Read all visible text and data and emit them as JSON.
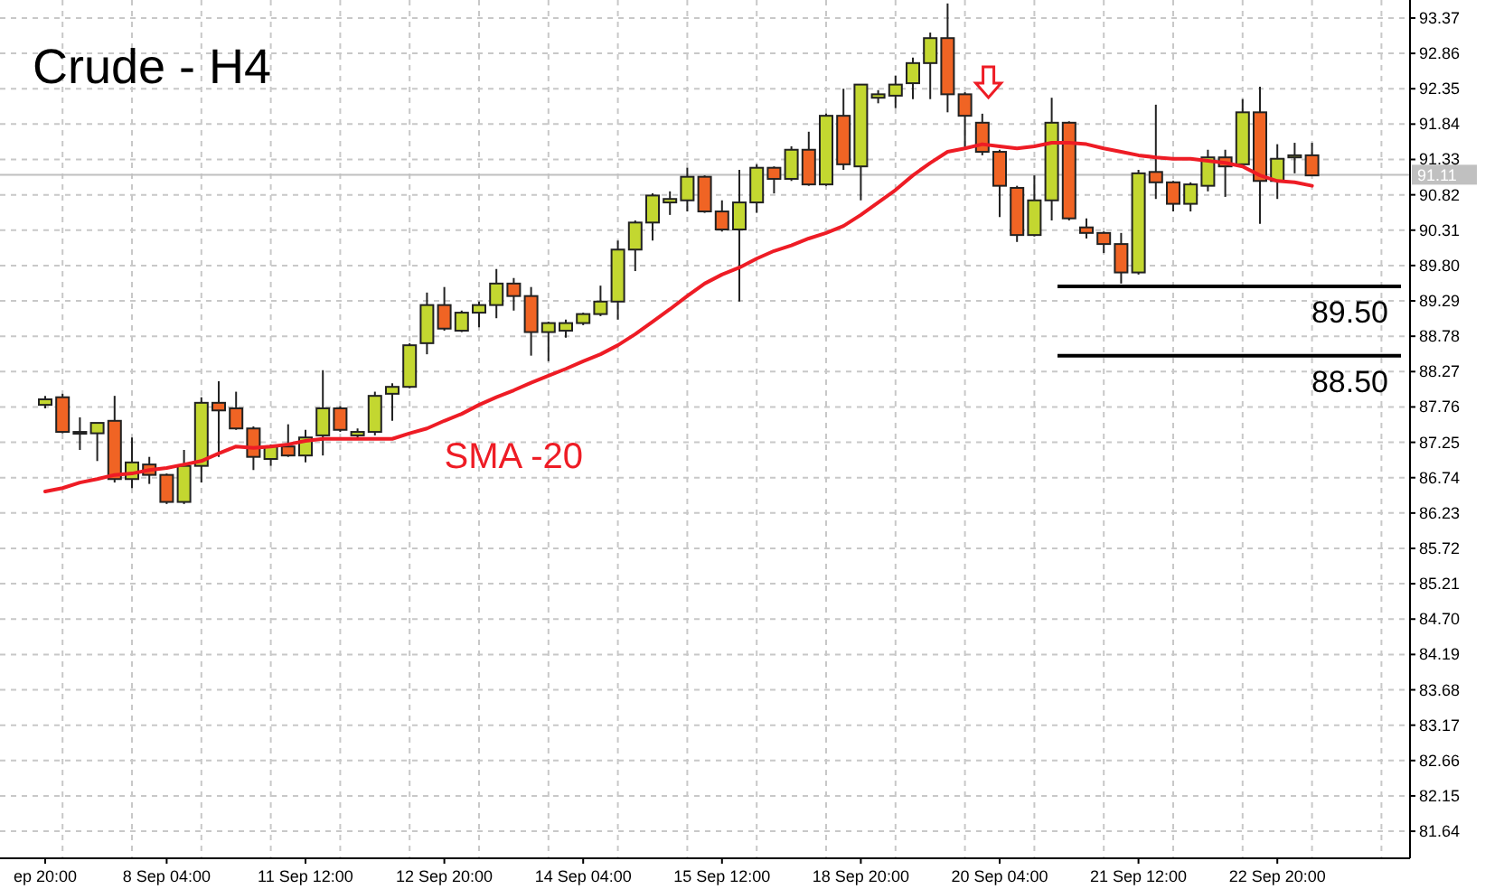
{
  "chart_data": {
    "type": "candlestick",
    "title": "Crude - H4",
    "categories": [
      "ep 20:00",
      null,
      null,
      null,
      null,
      null,
      null,
      "8 Sep 04:00",
      null,
      null,
      null,
      null,
      null,
      null,
      null,
      "11 Sep 12:00",
      null,
      null,
      null,
      null,
      null,
      null,
      null,
      "12 Sep 20:00",
      null,
      null,
      null,
      null,
      null,
      null,
      null,
      "14 Sep 04:00",
      null,
      null,
      null,
      null,
      null,
      null,
      null,
      "15 Sep 12:00",
      null,
      null,
      null,
      null,
      null,
      null,
      null,
      "18 Sep 20:00",
      null,
      null,
      null,
      null,
      null,
      null,
      null,
      "20 Sep 04:00",
      null,
      null,
      null,
      null,
      null,
      null,
      null,
      "21 Sep 12:00",
      null,
      null,
      null,
      null,
      null,
      null,
      null,
      "22 Sep 20:00",
      null,
      null
    ],
    "ohlc": [
      [
        87.79,
        87.92,
        87.74,
        87.87
      ],
      [
        87.9,
        87.95,
        87.38,
        87.4
      ],
      [
        87.4,
        87.61,
        87.14,
        87.4
      ],
      [
        87.38,
        87.53,
        86.98,
        87.53
      ],
      [
        87.56,
        87.92,
        86.67,
        86.72
      ],
      [
        86.72,
        87.32,
        86.59,
        86.96
      ],
      [
        86.93,
        87.04,
        86.65,
        86.78
      ],
      [
        86.78,
        86.8,
        86.36,
        86.39
      ],
      [
        86.39,
        87.14,
        86.36,
        86.91
      ],
      [
        86.91,
        87.9,
        86.67,
        87.82
      ],
      [
        87.82,
        88.13,
        87.04,
        87.71
      ],
      [
        87.74,
        87.98,
        87.43,
        87.45
      ],
      [
        87.45,
        87.48,
        86.85,
        87.04
      ],
      [
        87.01,
        87.22,
        86.91,
        87.19
      ],
      [
        87.19,
        87.51,
        87.04,
        87.06
      ],
      [
        87.06,
        87.43,
        86.96,
        87.32
      ],
      [
        87.35,
        88.29,
        87.06,
        87.74
      ],
      [
        87.74,
        87.77,
        87.4,
        87.43
      ],
      [
        87.35,
        87.45,
        87.32,
        87.4
      ],
      [
        87.4,
        87.98,
        87.35,
        87.92
      ],
      [
        87.95,
        88.1,
        87.56,
        88.05
      ],
      [
        88.05,
        88.68,
        88.03,
        88.65
      ],
      [
        88.68,
        89.41,
        88.52,
        89.23
      ],
      [
        89.23,
        89.49,
        88.86,
        88.89
      ],
      [
        88.86,
        89.15,
        88.84,
        89.12
      ],
      [
        89.12,
        89.28,
        88.91,
        89.23
      ],
      [
        89.23,
        89.75,
        89.04,
        89.54
      ],
      [
        89.54,
        89.62,
        89.15,
        89.36
      ],
      [
        89.36,
        89.49,
        88.5,
        88.84
      ],
      [
        88.84,
        88.99,
        88.42,
        88.97
      ],
      [
        88.86,
        89.02,
        88.76,
        88.97
      ],
      [
        88.97,
        89.12,
        88.94,
        89.1
      ],
      [
        89.1,
        89.51,
        89.07,
        89.28
      ],
      [
        89.28,
        90.16,
        89.02,
        90.03
      ],
      [
        90.03,
        90.45,
        89.72,
        90.42
      ],
      [
        90.42,
        90.84,
        90.16,
        90.81
      ],
      [
        90.71,
        90.87,
        90.53,
        90.76
      ],
      [
        90.74,
        91.21,
        90.58,
        91.08
      ],
      [
        91.08,
        91.1,
        90.56,
        90.58
      ],
      [
        90.58,
        90.74,
        90.29,
        90.32
      ],
      [
        90.32,
        91.18,
        89.28,
        90.71
      ],
      [
        90.71,
        91.26,
        90.56,
        91.21
      ],
      [
        91.21,
        91.23,
        90.84,
        91.05
      ],
      [
        91.05,
        91.52,
        91.02,
        91.47
      ],
      [
        91.47,
        91.73,
        90.95,
        90.97
      ],
      [
        90.97,
        91.99,
        90.95,
        91.96
      ],
      [
        91.96,
        92.35,
        91.18,
        91.26
      ],
      [
        91.23,
        92.41,
        90.74,
        92.41
      ],
      [
        92.22,
        92.33,
        92.14,
        92.27
      ],
      [
        92.25,
        92.54,
        92.07,
        92.41
      ],
      [
        92.43,
        92.8,
        92.2,
        92.72
      ],
      [
        92.72,
        93.16,
        92.2,
        93.08
      ],
      [
        93.08,
        93.58,
        92.01,
        92.27
      ],
      [
        92.27,
        92.3,
        91.49,
        91.96
      ],
      [
        91.86,
        91.99,
        91.39,
        91.44
      ],
      [
        91.44,
        91.47,
        90.5,
        90.95
      ],
      [
        90.92,
        90.95,
        90.14,
        90.24
      ],
      [
        90.24,
        91.1,
        90.22,
        90.74
      ],
      [
        90.74,
        92.22,
        90.45,
        91.86
      ],
      [
        91.86,
        91.88,
        90.45,
        90.48
      ],
      [
        90.35,
        90.48,
        90.19,
        90.27
      ],
      [
        90.27,
        90.29,
        89.98,
        90.11
      ],
      [
        90.11,
        90.27,
        89.54,
        89.7
      ],
      [
        89.7,
        91.18,
        89.67,
        91.13
      ],
      [
        91.15,
        92.12,
        90.76,
        91.0
      ],
      [
        91.0,
        91.02,
        90.58,
        90.69
      ],
      [
        90.69,
        91.0,
        90.58,
        90.97
      ],
      [
        90.95,
        91.47,
        90.87,
        91.36
      ],
      [
        91.36,
        91.47,
        90.79,
        91.23
      ],
      [
        91.26,
        92.2,
        91.23,
        92.01
      ],
      [
        92.01,
        92.38,
        90.4,
        91.02
      ],
      [
        91.02,
        91.55,
        90.76,
        91.34
      ],
      [
        91.36,
        91.57,
        91.13,
        91.39
      ],
      [
        91.39,
        91.57,
        91.1,
        91.1
      ]
    ],
    "colors": [
      "#c3d730",
      "#f06424",
      "#c3d730",
      "#c3d730",
      "#f06424",
      "#c3d730",
      "#f06424",
      "#f06424",
      "#c3d730",
      "#c3d730",
      "#f06424",
      "#f06424",
      "#f06424",
      "#c3d730",
      "#f06424",
      "#c3d730",
      "#c3d730",
      "#f06424",
      "#c3d730",
      "#c3d730",
      "#c3d730",
      "#c3d730",
      "#c3d730",
      "#f06424",
      "#c3d730",
      "#c3d730",
      "#c3d730",
      "#f06424",
      "#f06424",
      "#c3d730",
      "#c3d730",
      "#c3d730",
      "#c3d730",
      "#c3d730",
      "#c3d730",
      "#c3d730",
      "#c3d730",
      "#c3d730",
      "#f06424",
      "#f06424",
      "#c3d730",
      "#c3d730",
      "#f06424",
      "#c3d730",
      "#f06424",
      "#c3d730",
      "#f06424",
      "#c3d730",
      "#c3d730",
      "#c3d730",
      "#c3d730",
      "#c3d730",
      "#f06424",
      "#f06424",
      "#f06424",
      "#f06424",
      "#f06424",
      "#c3d730",
      "#c3d730",
      "#f06424",
      "#f06424",
      "#f06424",
      "#f06424",
      "#c3d730",
      "#f06424",
      "#f06424",
      "#c3d730",
      "#c3d730",
      "#f06424",
      "#c3d730",
      "#f06424",
      "#c3d730",
      "#c3d730",
      "#f06424"
    ],
    "series": [
      {
        "type": "line",
        "name": "SMA -20",
        "color": "#ee1c25",
        "values": [
          86.54,
          86.59,
          86.67,
          86.72,
          86.78,
          86.8,
          86.85,
          86.88,
          86.93,
          86.98,
          87.09,
          87.19,
          87.17,
          87.19,
          87.22,
          87.27,
          87.3,
          87.3,
          87.3,
          87.3,
          87.3,
          87.38,
          87.45,
          87.56,
          87.66,
          87.79,
          87.9,
          88.0,
          88.11,
          88.21,
          88.31,
          88.42,
          88.52,
          88.65,
          88.81,
          88.99,
          89.17,
          89.36,
          89.54,
          89.67,
          89.77,
          89.9,
          90.01,
          90.09,
          90.19,
          90.27,
          90.37,
          90.53,
          90.71,
          90.89,
          91.1,
          91.28,
          91.44,
          91.49,
          91.55,
          91.52,
          91.49,
          91.52,
          91.57,
          91.57,
          91.55,
          91.49,
          91.44,
          91.39,
          91.36,
          91.34,
          91.34,
          91.31,
          91.28,
          91.23,
          91.1,
          91.02,
          91.0,
          90.95
        ]
      }
    ],
    "ylim": [
      81.25,
      93.63
    ],
    "yticks": [
      93.37,
      92.86,
      92.35,
      91.84,
      91.33,
      90.82,
      90.31,
      {
        "value": 89.8,
        "label": "89.80"
      },
      89.29,
      88.78,
      88.27,
      87.76,
      87.25,
      86.74,
      86.23,
      85.72,
      85.21,
      {
        "value": 84.7,
        "label": "84.70"
      },
      84.19,
      83.68,
      83.17,
      82.66,
      82.15,
      81.64
    ],
    "ref_lines": [
      {
        "axis": "y",
        "value": 91.11,
        "label": "91.11",
        "color": "#c0c0c0"
      },
      {
        "axis": "y",
        "value": 89.5,
        "label": "89.50",
        "color": "#000000"
      },
      {
        "axis": "y",
        "value": 88.5,
        "label": "88.50",
        "color": "#000000"
      }
    ],
    "grid": true,
    "marker": "none",
    "line_style": "solid"
  }
}
